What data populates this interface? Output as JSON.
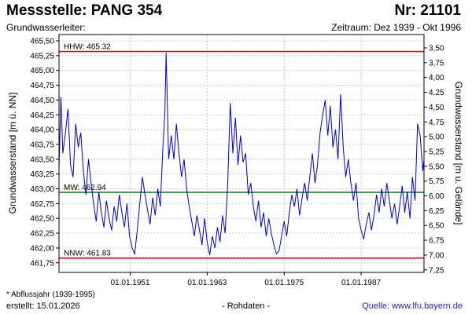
{
  "header": {
    "title": "Messstelle: PANG 354",
    "number": "Nr: 21101",
    "aquifer": "Grundwasserleiter:",
    "period": "Zeitraum: Dez 1939 - Okt 1996"
  },
  "footer": {
    "footnote": "* Abflussjahr (1939-1995)",
    "created_label": "erstellt:",
    "created_date": "15.01.2026",
    "raw_data": "- Rohdaten -",
    "source": "Quelle: www.lfu.bayern.de"
  },
  "colors": {
    "series": "#0000cc",
    "hhw": "#e00000",
    "nnw": "#e00000",
    "mw": "#008000",
    "grid": "#c8c8c8"
  },
  "chart_data": {
    "type": "line",
    "ylabel": "Grundwasserstand [m ü. NN]",
    "y2label": "Grundwasserstand [m u. Gelände]",
    "ylim": [
      461.65,
      465.55
    ],
    "y_ticks": [
      "465,50",
      "465,25",
      "465,00",
      "464,75",
      "464,50",
      "464,25",
      "464,00",
      "463,75",
      "463,50",
      "463,25",
      "463,00",
      "462,75",
      "462,50",
      "462,25",
      "462,00",
      "461,75"
    ],
    "y2_ticks": [
      "3,50",
      "3,75",
      "4,00",
      "4,25",
      "4,50",
      "4,75",
      "5,00",
      "5,25",
      "5,50",
      "5,75",
      "6,00",
      "6,25",
      "6,50",
      "6,75",
      "7,00",
      "7,25"
    ],
    "x_ticks": [
      "01.01.1951",
      "01.01.1963",
      "01.01.1975",
      "01.01.1987"
    ],
    "xlim": [
      1939.9,
      1996.8
    ],
    "grid": true,
    "reference_lines": [
      {
        "label": "HHW: 465.32",
        "value": 465.32
      },
      {
        "label": "MW: 462.94",
        "value": 462.94
      },
      {
        "label": "NNW: 461.83",
        "value": 461.83
      }
    ],
    "series": [
      {
        "x": [
          1939.9,
          1940.2,
          1940.5,
          1940.9,
          1941.3,
          1941.7,
          1942.1,
          1942.5,
          1942.9,
          1943.3,
          1943.7,
          1944.1,
          1944.5,
          1944.9,
          1945.3,
          1945.7,
          1946.1,
          1946.5,
          1946.9,
          1947.3,
          1947.7,
          1948.1,
          1948.5,
          1948.9,
          1949.3,
          1949.7,
          1950.1,
          1950.5,
          1950.9,
          1951.3,
          1951.7,
          1952.1,
          1952.5,
          1952.9,
          1953.3,
          1953.7,
          1954.1,
          1954.5,
          1954.9,
          1955.3,
          1955.7,
          1956.1,
          1956.4,
          1956.6,
          1957.0,
          1957.4,
          1957.8,
          1958.2,
          1958.6,
          1959.0,
          1959.4,
          1959.8,
          1960.2,
          1960.6,
          1961.0,
          1961.4,
          1961.8,
          1962.2,
          1962.6,
          1963.0,
          1963.4,
          1963.8,
          1964.2,
          1964.6,
          1965.0,
          1965.4,
          1965.8,
          1966.2,
          1966.6,
          1967.0,
          1967.4,
          1967.8,
          1968.2,
          1968.6,
          1969.0,
          1969.4,
          1969.8,
          1970.2,
          1970.6,
          1971.0,
          1971.4,
          1971.8,
          1972.2,
          1972.6,
          1973.0,
          1973.4,
          1973.8,
          1974.2,
          1974.6,
          1975.0,
          1975.4,
          1975.8,
          1976.2,
          1976.6,
          1977.0,
          1977.4,
          1977.8,
          1978.2,
          1978.6,
          1979.0,
          1979.4,
          1979.8,
          1980.2,
          1980.6,
          1981.0,
          1981.4,
          1981.8,
          1982.2,
          1982.6,
          1983.0,
          1983.4,
          1983.8,
          1984.2,
          1984.6,
          1985.0,
          1985.4,
          1985.8,
          1986.2,
          1986.6,
          1987.0,
          1987.4,
          1987.8,
          1988.2,
          1988.6,
          1989.0,
          1989.4,
          1989.8,
          1990.2,
          1990.6,
          1991.0,
          1991.4,
          1991.8,
          1992.2,
          1992.6,
          1993.0,
          1993.4,
          1993.8,
          1994.2,
          1994.6,
          1995.0,
          1995.4,
          1995.8,
          1996.2,
          1996.6,
          1996.8
        ],
        "y": [
          463.35,
          464.55,
          463.6,
          463.95,
          464.35,
          463.4,
          463.2,
          464.1,
          463.7,
          463.95,
          463.3,
          462.9,
          463.5,
          463.1,
          462.75,
          462.45,
          462.95,
          462.6,
          462.35,
          462.8,
          462.5,
          462.3,
          462.7,
          462.45,
          462.9,
          462.6,
          462.35,
          462.75,
          462.2,
          462.0,
          461.9,
          462.3,
          462.75,
          463.2,
          462.9,
          462.65,
          462.4,
          462.85,
          462.55,
          463.0,
          462.7,
          463.7,
          464.3,
          465.3,
          463.5,
          463.9,
          463.5,
          464.1,
          463.6,
          463.2,
          463.5,
          463.0,
          462.7,
          462.45,
          462.2,
          462.55,
          462.3,
          462.05,
          462.5,
          462.1,
          461.88,
          462.2,
          462.0,
          462.35,
          462.1,
          462.55,
          462.25,
          463.1,
          464.45,
          463.6,
          464.2,
          463.4,
          463.9,
          463.45,
          463.6,
          462.9,
          463.1,
          462.7,
          462.45,
          462.8,
          462.35,
          462.6,
          462.2,
          462.5,
          462.25,
          462.05,
          461.9,
          461.95,
          462.2,
          462.45,
          462.2,
          462.6,
          462.9,
          462.7,
          463.0,
          462.55,
          462.85,
          463.1,
          462.8,
          463.2,
          463.6,
          463.1,
          463.4,
          463.95,
          464.25,
          464.5,
          463.9,
          464.4,
          463.7,
          464.0,
          463.5,
          464.6,
          463.7,
          463.2,
          463.5,
          463.1,
          462.8,
          463.1,
          462.5,
          462.3,
          462.15,
          462.4,
          462.6,
          462.3,
          462.55,
          462.9,
          462.6,
          463.0,
          462.7,
          463.1,
          462.8,
          462.5,
          462.75,
          462.4,
          462.7,
          463.05,
          462.6,
          462.95,
          462.5,
          463.2,
          462.8,
          464.1,
          463.9,
          463.3,
          463.5
        ]
      }
    ]
  }
}
